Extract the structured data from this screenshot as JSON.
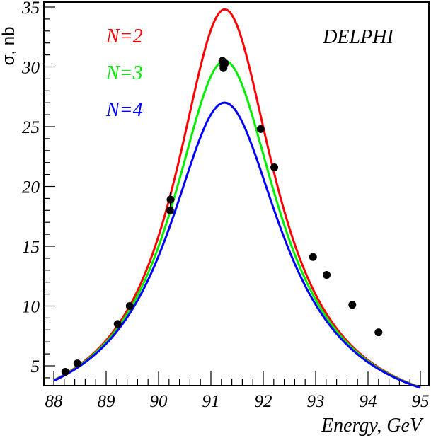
{
  "chart_data": {
    "type": "line",
    "title": "",
    "experiment_label": "DELPHI",
    "xlabel": "Energy, GeV",
    "ylabel": "σ, nb",
    "xlim": [
      88,
      95
    ],
    "ylim": [
      3.3,
      35.4
    ],
    "x_ticks": [
      88,
      89,
      90,
      91,
      92,
      93,
      94,
      95
    ],
    "x_tick_labels": [
      "88",
      "89",
      "90",
      "91",
      "92",
      "93",
      "94",
      "95"
    ],
    "x_minor_step": 0.2,
    "y_ticks": [
      5,
      10,
      15,
      20,
      25,
      30,
      35
    ],
    "y_tick_labels": [
      "5",
      "10",
      "15",
      "20",
      "25",
      "30",
      "35"
    ],
    "y_minor_step": 1,
    "grid": false,
    "legend_position": "top-left",
    "series": [
      {
        "name": "N=2",
        "label": "N=2",
        "color": "#ff0000",
        "model": "breit-wigner",
        "mass": 91.28,
        "width": 2.33,
        "peak": 34.8,
        "x_range": [
          88,
          95
        ],
        "x": [
          88.0,
          88.5,
          89.0,
          89.5,
          90.0,
          90.5,
          91.0,
          91.28,
          91.5,
          92.0,
          92.5,
          93.0,
          93.5,
          94.0,
          94.5,
          95.0
        ],
        "values": [
          4.1,
          5.4,
          7.4,
          10.8,
          16.4,
          25.6,
          33.5,
          34.8,
          34.0,
          27.1,
          19.9,
          14.6,
          11.1,
          8.7,
          7.1,
          5.9
        ]
      },
      {
        "name": "N=3",
        "label": "N=3",
        "color": "#00ee00",
        "model": "breit-wigner",
        "mass": 91.28,
        "width": 2.5,
        "peak": 30.5,
        "x_range": [
          88,
          95
        ],
        "x": [
          88.0,
          88.5,
          89.0,
          89.5,
          90.0,
          90.5,
          91.0,
          91.28,
          91.5,
          92.0,
          92.5,
          93.0,
          93.5,
          94.0,
          94.5,
          95.0
        ],
        "values": [
          4.0,
          5.2,
          7.1,
          10.2,
          15.3,
          23.2,
          29.5,
          30.5,
          29.9,
          24.4,
          18.3,
          13.7,
          10.5,
          8.3,
          6.8,
          5.6
        ]
      },
      {
        "name": "N=4",
        "label": "N=4",
        "color": "#0000ff",
        "model": "breit-wigner",
        "mass": 91.28,
        "width": 2.67,
        "peak": 27.0,
        "x_range": [
          88,
          95
        ],
        "x": [
          88.0,
          88.5,
          89.0,
          89.5,
          90.0,
          90.5,
          91.0,
          91.28,
          91.5,
          92.0,
          92.5,
          93.0,
          93.5,
          94.0,
          94.5,
          95.0
        ],
        "values": [
          3.8,
          5.0,
          6.8,
          9.6,
          14.2,
          21.1,
          26.2,
          27.0,
          26.5,
          22.0,
          16.8,
          12.7,
          9.9,
          7.8,
          6.4,
          5.3
        ]
      }
    ],
    "data_points": {
      "name": "DELPHI data",
      "color": "#000000",
      "x": [
        88.22,
        88.45,
        89.22,
        89.45,
        90.22,
        90.23,
        91.22,
        91.24,
        91.27,
        91.24,
        91.95,
        92.21,
        92.95,
        93.21,
        93.7,
        94.2
      ],
      "y": [
        4.5,
        5.2,
        8.5,
        10.0,
        18.0,
        18.9,
        30.5,
        30.1,
        30.3,
        29.9,
        24.8,
        21.6,
        14.1,
        12.6,
        10.1,
        7.8
      ],
      "y_err": [
        0.1,
        0.1,
        0.1,
        0.1,
        0.3,
        0.6,
        0.2,
        0.2,
        0.2,
        0.2,
        0.2,
        0.3,
        0.1,
        0.1,
        0.1,
        0.1
      ]
    }
  }
}
